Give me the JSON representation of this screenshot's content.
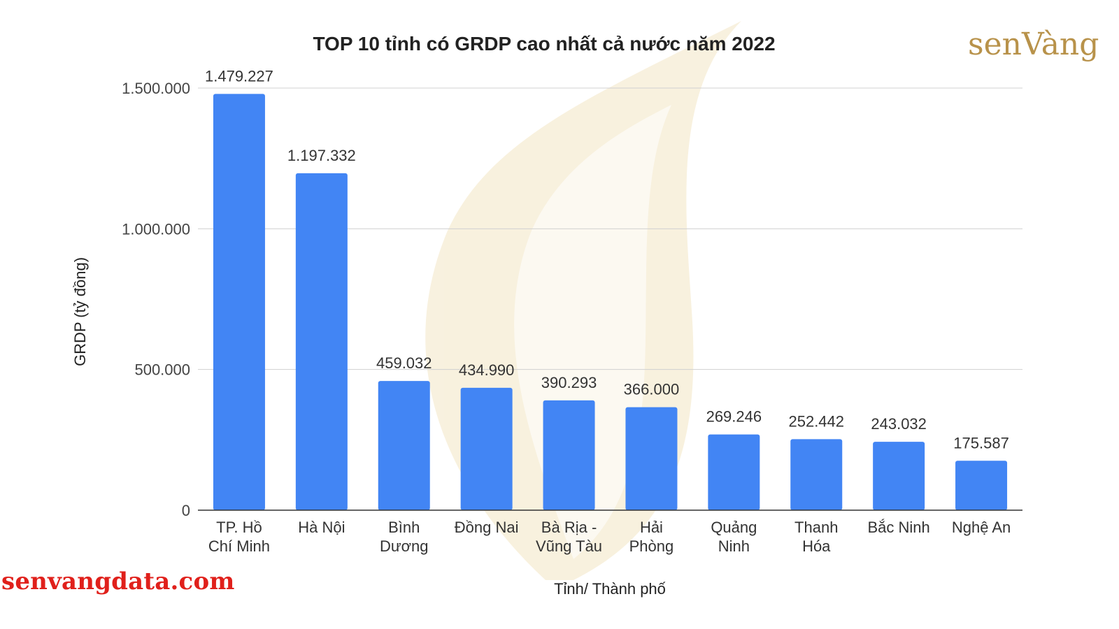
{
  "brand": {
    "logo_text": "senVàng",
    "website": "senvangdata.com",
    "logo_color": "#b8924a",
    "website_color": "#e0201b"
  },
  "colors": {
    "bar": "#4285f4",
    "grid": "#d0d0d0",
    "axis": "#333333",
    "watermark": "#f3e6c4"
  },
  "chart_data": {
    "type": "bar",
    "title": "TOP 10 tỉnh có GRDP cao nhất cả nước năm 2022",
    "xlabel": "Tỉnh/ Thành phố",
    "ylabel": "GRDP (tỷ đồng)",
    "ylim": [
      0,
      1500000
    ],
    "yticks": [
      0,
      500000,
      1000000,
      1500000
    ],
    "ytick_labels": [
      "0",
      "500.000",
      "1.000.000",
      "1.500.000"
    ],
    "grid": true,
    "categories": [
      [
        "TP. Hồ",
        "Chí Minh"
      ],
      [
        "Hà Nội"
      ],
      [
        "Bình",
        "Dương"
      ],
      [
        "Đồng Nai"
      ],
      [
        "Bà Rịa -",
        "Vũng Tàu"
      ],
      [
        "Hải",
        "Phòng"
      ],
      [
        "Quảng",
        "Ninh"
      ],
      [
        "Thanh",
        "Hóa"
      ],
      [
        "Bắc Ninh"
      ],
      [
        "Nghệ An"
      ]
    ],
    "values": [
      1479227,
      1197332,
      459032,
      434990,
      390293,
      366000,
      269246,
      252442,
      243032,
      175587
    ],
    "value_labels": [
      "1.479.227",
      "1.197.332",
      "459.032",
      "434.990",
      "390.293",
      "366.000",
      "269.246",
      "252.442",
      "243.032",
      "175.587"
    ]
  }
}
